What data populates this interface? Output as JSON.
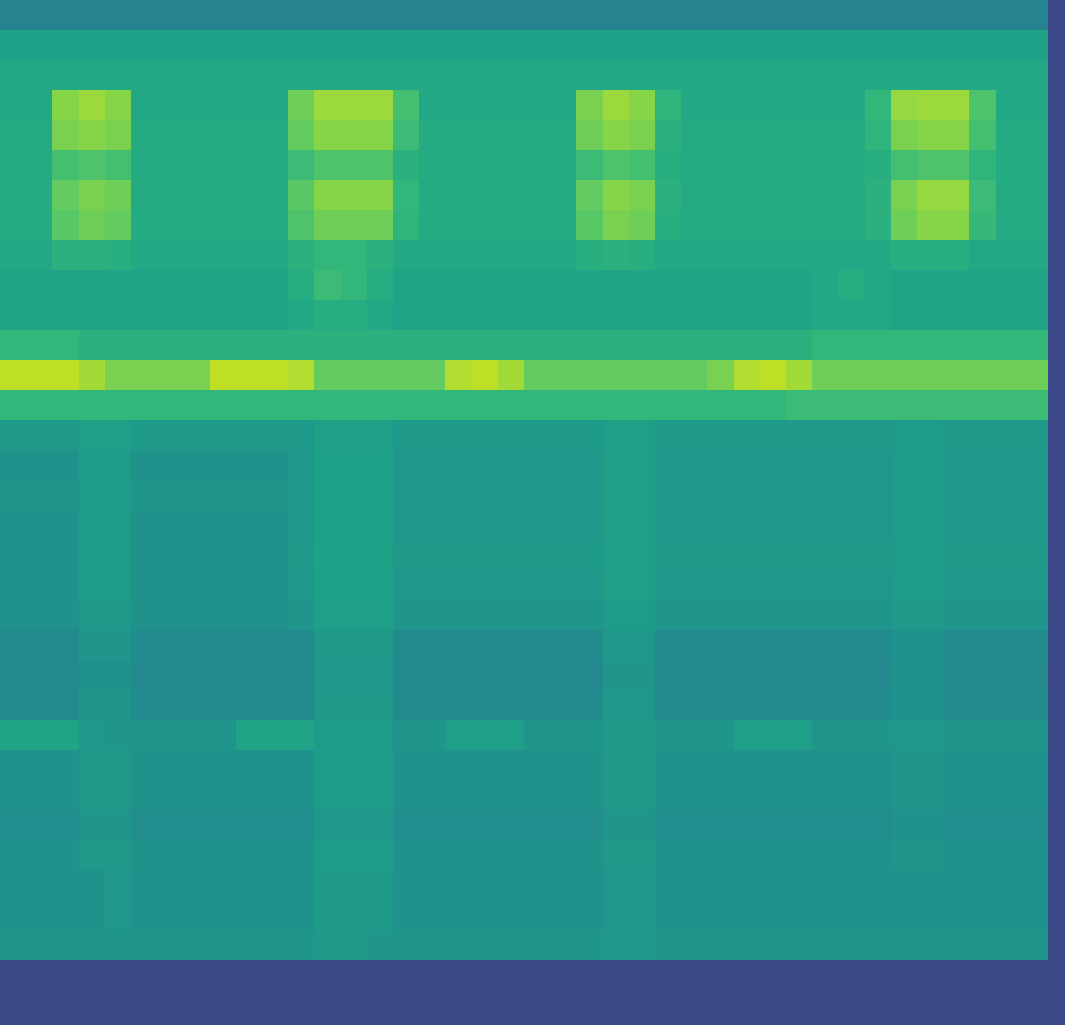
{
  "chart_data": {
    "type": "heatmap",
    "tick_labels": false,
    "zlim": [
      0,
      100
    ],
    "cells": [
      [
        45,
        45,
        45,
        45,
        45,
        45,
        45,
        45,
        45,
        45,
        45,
        45,
        45,
        45,
        45,
        45,
        45,
        45,
        45,
        45,
        45,
        45,
        45,
        45,
        45,
        45,
        45,
        45,
        45,
        45,
        45,
        45,
        45,
        45,
        45,
        45,
        45,
        45,
        45,
        45
      ],
      [
        57,
        57,
        57,
        57,
        57,
        57,
        57,
        57,
        57,
        57,
        57,
        57,
        57,
        57,
        57,
        57,
        57,
        57,
        57,
        57,
        57,
        57,
        57,
        57,
        57,
        57,
        57,
        57,
        57,
        57,
        57,
        57,
        57,
        57,
        57,
        57,
        57,
        57,
        57,
        57
      ],
      [
        60,
        60,
        60,
        60,
        60,
        60,
        60,
        60,
        60,
        60,
        60,
        60,
        60,
        60,
        60,
        60,
        60,
        60,
        60,
        60,
        60,
        60,
        60,
        60,
        60,
        60,
        60,
        60,
        60,
        60,
        60,
        60,
        60,
        60,
        60,
        60,
        60,
        60,
        60,
        60
      ],
      [
        60,
        60,
        82,
        85,
        82,
        60,
        60,
        60,
        60,
        60,
        60,
        78,
        85,
        85,
        85,
        70,
        60,
        60,
        60,
        60,
        60,
        60,
        80,
        85,
        82,
        65,
        60,
        60,
        60,
        60,
        60,
        60,
        60,
        66,
        84,
        85,
        85,
        72,
        60,
        60
      ],
      [
        61,
        61,
        80,
        82,
        80,
        61,
        61,
        61,
        61,
        61,
        61,
        76,
        82,
        82,
        82,
        68,
        61,
        61,
        61,
        61,
        61,
        61,
        78,
        82,
        80,
        64,
        61,
        61,
        61,
        61,
        61,
        61,
        61,
        65,
        80,
        82,
        82,
        70,
        61,
        61
      ],
      [
        61,
        61,
        70,
        72,
        70,
        61,
        61,
        61,
        61,
        61,
        61,
        68,
        72,
        72,
        72,
        64,
        61,
        61,
        61,
        61,
        61,
        61,
        68,
        72,
        70,
        63,
        61,
        61,
        61,
        61,
        61,
        61,
        61,
        63,
        70,
        72,
        72,
        65,
        61,
        61
      ],
      [
        61,
        61,
        76,
        80,
        78,
        61,
        61,
        61,
        61,
        61,
        61,
        74,
        82,
        82,
        82,
        66,
        61,
        61,
        61,
        61,
        61,
        61,
        76,
        82,
        80,
        64,
        61,
        61,
        61,
        61,
        61,
        61,
        61,
        64,
        80,
        84,
        84,
        68,
        61,
        61
      ],
      [
        61,
        61,
        74,
        78,
        76,
        61,
        61,
        61,
        61,
        61,
        61,
        72,
        78,
        78,
        78,
        65,
        61,
        61,
        61,
        61,
        61,
        61,
        74,
        80,
        78,
        63,
        61,
        61,
        61,
        61,
        61,
        61,
        61,
        64,
        78,
        82,
        82,
        67,
        61,
        61
      ],
      [
        60,
        60,
        64,
        64,
        63,
        60,
        60,
        60,
        60,
        60,
        60,
        64,
        66,
        66,
        64,
        60,
        60,
        60,
        60,
        60,
        60,
        60,
        63,
        64,
        63,
        60,
        60,
        60,
        60,
        60,
        60,
        60,
        60,
        60,
        63,
        63,
        63,
        60,
        60,
        60
      ],
      [
        58,
        58,
        58,
        58,
        58,
        58,
        58,
        58,
        58,
        58,
        58,
        62,
        68,
        66,
        62,
        58,
        58,
        58,
        58,
        58,
        58,
        58,
        58,
        58,
        58,
        58,
        58,
        58,
        58,
        58,
        58,
        60,
        62,
        60,
        58,
        58,
        58,
        58,
        58,
        58
      ],
      [
        58,
        58,
        58,
        58,
        58,
        58,
        58,
        58,
        58,
        58,
        58,
        60,
        62,
        62,
        60,
        58,
        58,
        58,
        58,
        58,
        58,
        58,
        58,
        58,
        58,
        58,
        58,
        58,
        58,
        58,
        58,
        60,
        60,
        60,
        58,
        58,
        58,
        58,
        58,
        58
      ],
      [
        66,
        66,
        66,
        64,
        64,
        64,
        64,
        64,
        64,
        64,
        64,
        64,
        64,
        64,
        64,
        64,
        64,
        64,
        64,
        64,
        64,
        64,
        64,
        64,
        64,
        64,
        64,
        64,
        64,
        64,
        64,
        66,
        66,
        66,
        66,
        66,
        66,
        66,
        66,
        66
      ],
      [
        90,
        90,
        90,
        86,
        80,
        80,
        80,
        80,
        90,
        90,
        90,
        88,
        76,
        76,
        76,
        76,
        76,
        88,
        90,
        86,
        76,
        76,
        76,
        76,
        76,
        76,
        76,
        80,
        88,
        90,
        86,
        78,
        78,
        78,
        78,
        78,
        78,
        78,
        78,
        78
      ],
      [
        66,
        66,
        66,
        66,
        66,
        66,
        66,
        66,
        66,
        66,
        66,
        66,
        66,
        66,
        66,
        66,
        66,
        66,
        66,
        66,
        66,
        66,
        66,
        66,
        66,
        66,
        66,
        66,
        66,
        66,
        68,
        68,
        68,
        68,
        68,
        68,
        68,
        68,
        68,
        68
      ],
      [
        54,
        54,
        54,
        56,
        56,
        54,
        54,
        54,
        54,
        54,
        54,
        54,
        56,
        56,
        56,
        54,
        54,
        54,
        54,
        54,
        54,
        54,
        54,
        56,
        56,
        54,
        54,
        54,
        54,
        54,
        54,
        54,
        54,
        54,
        55,
        55,
        54,
        54,
        54,
        54
      ],
      [
        51,
        51,
        51,
        55,
        55,
        51,
        51,
        51,
        51,
        51,
        51,
        53,
        57,
        57,
        57,
        53,
        53,
        53,
        53,
        53,
        53,
        53,
        53,
        56,
        56,
        53,
        53,
        53,
        53,
        53,
        53,
        53,
        53,
        53,
        55,
        55,
        53,
        53,
        53,
        53
      ],
      [
        52,
        52,
        52,
        55,
        55,
        52,
        52,
        52,
        52,
        52,
        52,
        53,
        57,
        57,
        57,
        53,
        53,
        53,
        53,
        53,
        53,
        53,
        53,
        56,
        56,
        53,
        53,
        53,
        53,
        53,
        53,
        53,
        53,
        53,
        55,
        55,
        53,
        53,
        53,
        53
      ],
      [
        51,
        51,
        51,
        55,
        55,
        51,
        51,
        51,
        51,
        51,
        51,
        53,
        57,
        57,
        57,
        53,
        53,
        53,
        53,
        53,
        53,
        53,
        53,
        56,
        56,
        53,
        53,
        53,
        53,
        53,
        53,
        53,
        53,
        53,
        55,
        55,
        53,
        53,
        53,
        53
      ],
      [
        51,
        51,
        51,
        55,
        55,
        51,
        51,
        51,
        51,
        51,
        51,
        54,
        57,
        57,
        57,
        54,
        54,
        54,
        54,
        54,
        54,
        54,
        54,
        56,
        56,
        54,
        54,
        54,
        54,
        54,
        54,
        54,
        54,
        54,
        55,
        55,
        54,
        54,
        54,
        54
      ],
      [
        51,
        51,
        51,
        55,
        55,
        51,
        51,
        51,
        51,
        51,
        51,
        53,
        57,
        57,
        57,
        53,
        53,
        53,
        53,
        53,
        53,
        53,
        53,
        56,
        56,
        53,
        53,
        53,
        53,
        53,
        53,
        53,
        53,
        53,
        55,
        55,
        53,
        53,
        53,
        53
      ],
      [
        50,
        50,
        50,
        54,
        54,
        50,
        50,
        50,
        50,
        50,
        50,
        52,
        56,
        56,
        56,
        52,
        52,
        52,
        52,
        52,
        52,
        52,
        52,
        55,
        55,
        52,
        52,
        52,
        52,
        52,
        52,
        52,
        52,
        52,
        54,
        54,
        52,
        52,
        52,
        52
      ],
      [
        48,
        48,
        48,
        52,
        52,
        48,
        48,
        48,
        48,
        48,
        48,
        48,
        54,
        54,
        54,
        48,
        48,
        48,
        48,
        48,
        48,
        48,
        48,
        53,
        53,
        48,
        48,
        48,
        48,
        48,
        48,
        48,
        48,
        48,
        51,
        51,
        48,
        48,
        48,
        48
      ],
      [
        47,
        47,
        47,
        51,
        51,
        47,
        47,
        47,
        47,
        47,
        47,
        47,
        53,
        53,
        53,
        47,
        47,
        47,
        47,
        47,
        47,
        47,
        47,
        52,
        52,
        47,
        47,
        47,
        47,
        47,
        47,
        47,
        47,
        47,
        50,
        50,
        47,
        47,
        47,
        47
      ],
      [
        48,
        48,
        48,
        52,
        52,
        48,
        48,
        48,
        48,
        48,
        48,
        48,
        54,
        54,
        54,
        48,
        48,
        48,
        48,
        48,
        48,
        48,
        48,
        53,
        53,
        48,
        48,
        48,
        48,
        48,
        48,
        48,
        48,
        48,
        51,
        51,
        48,
        48,
        48,
        48
      ],
      [
        58,
        58,
        58,
        53,
        52,
        52,
        52,
        52,
        52,
        58,
        58,
        58,
        55,
        55,
        55,
        52,
        52,
        56,
        56,
        56,
        52,
        52,
        52,
        54,
        54,
        52,
        52,
        52,
        56,
        56,
        56,
        52,
        52,
        52,
        53,
        53,
        52,
        52,
        52,
        52
      ],
      [
        51,
        51,
        51,
        54,
        54,
        51,
        51,
        51,
        51,
        51,
        51,
        51,
        55,
        55,
        55,
        51,
        51,
        51,
        51,
        51,
        51,
        51,
        51,
        54,
        54,
        51,
        51,
        51,
        51,
        51,
        51,
        51,
        51,
        51,
        52,
        52,
        51,
        51,
        51,
        51
      ],
      [
        51,
        51,
        51,
        54,
        54,
        51,
        51,
        51,
        51,
        51,
        51,
        51,
        55,
        55,
        55,
        51,
        51,
        51,
        51,
        51,
        51,
        51,
        51,
        54,
        54,
        51,
        51,
        51,
        51,
        51,
        51,
        51,
        51,
        51,
        52,
        52,
        51,
        51,
        51,
        51
      ],
      [
        49,
        49,
        49,
        52,
        52,
        49,
        49,
        49,
        49,
        49,
        49,
        49,
        53,
        53,
        53,
        49,
        49,
        49,
        49,
        49,
        49,
        49,
        49,
        52,
        52,
        49,
        49,
        49,
        49,
        49,
        49,
        49,
        49,
        49,
        50,
        50,
        49,
        49,
        49,
        49
      ],
      [
        51,
        51,
        51,
        54,
        54,
        51,
        51,
        51,
        51,
        51,
        51,
        51,
        55,
        55,
        55,
        51,
        51,
        51,
        51,
        51,
        51,
        51,
        51,
        54,
        54,
        51,
        51,
        51,
        51,
        51,
        51,
        51,
        51,
        51,
        52,
        52,
        51,
        51,
        51,
        51
      ],
      [
        51,
        51,
        51,
        51,
        53,
        51,
        51,
        51,
        51,
        51,
        51,
        51,
        54,
        54,
        54,
        51,
        51,
        51,
        51,
        51,
        51,
        51,
        51,
        53,
        53,
        51,
        51,
        51,
        51,
        51,
        51,
        51,
        51,
        51,
        51,
        51,
        51,
        51,
        51,
        51
      ],
      [
        51,
        51,
        51,
        51,
        53,
        51,
        51,
        51,
        51,
        51,
        51,
        51,
        54,
        54,
        54,
        51,
        51,
        51,
        51,
        51,
        51,
        51,
        51,
        53,
        53,
        51,
        51,
        51,
        51,
        51,
        51,
        51,
        51,
        51,
        51,
        51,
        51,
        51,
        51,
        51
      ],
      [
        52,
        52,
        52,
        52,
        52,
        52,
        52,
        52,
        52,
        52,
        52,
        52,
        54,
        54,
        52,
        52,
        52,
        52,
        52,
        52,
        52,
        52,
        52,
        53,
        53,
        52,
        52,
        52,
        52,
        52,
        52,
        52,
        52,
        52,
        52,
        52,
        52,
        52,
        52,
        52
      ]
    ]
  }
}
